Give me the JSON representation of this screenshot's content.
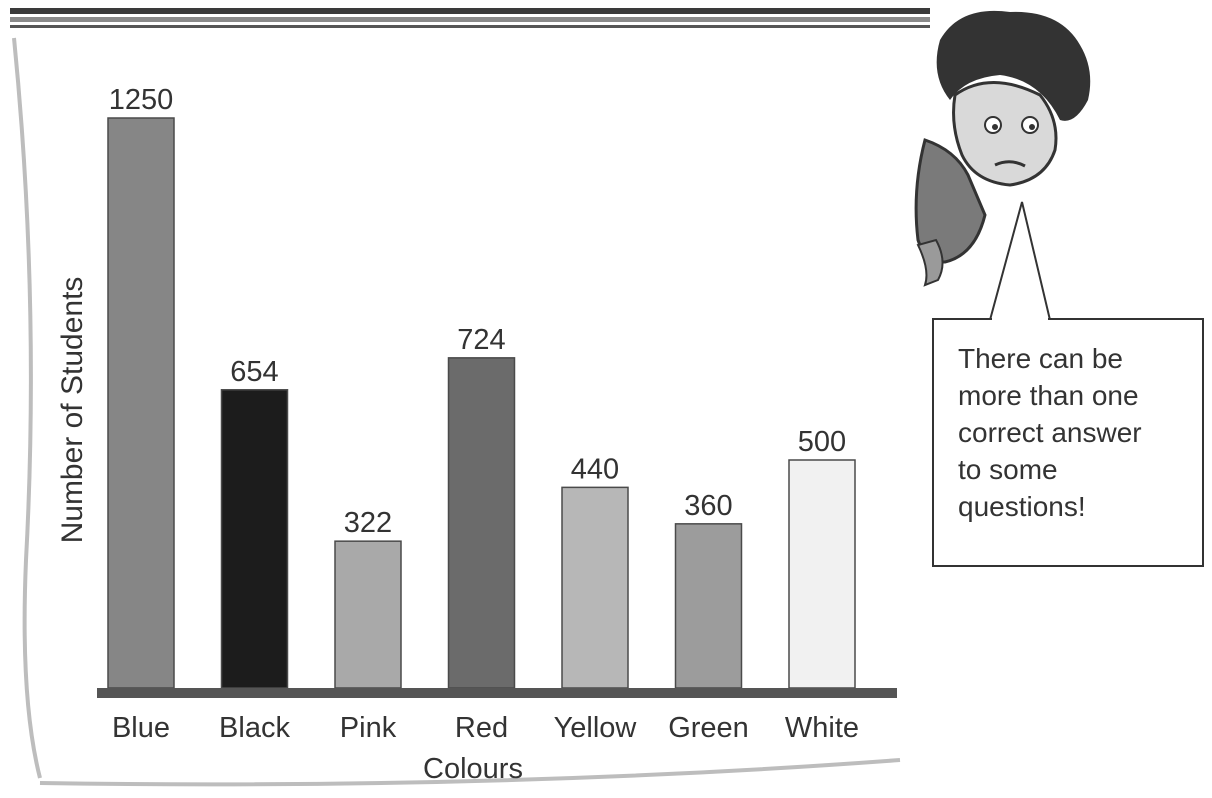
{
  "chart_data": {
    "type": "bar",
    "categories": [
      "Blue",
      "Black",
      "Pink",
      "Red",
      "Yellow",
      "Green",
      "White"
    ],
    "values": [
      1250,
      654,
      322,
      724,
      440,
      360,
      500
    ],
    "bar_colors": [
      "#868686",
      "#1c1c1c",
      "#a9a9a9",
      "#6b6b6b",
      "#b7b7b7",
      "#9c9c9c",
      "#f1f1f1"
    ],
    "title": "",
    "xlabel": "Colours",
    "ylabel": "Number of Students",
    "ylim": [
      0,
      1250
    ],
    "grid": false,
    "legend": "none"
  },
  "callout": {
    "text": "There can be\nmore than one\ncorrect answer\nto some\nquestions!"
  },
  "colors": {
    "frame": "#bdbdbd",
    "axis": "#555555",
    "ink": "#333333"
  }
}
